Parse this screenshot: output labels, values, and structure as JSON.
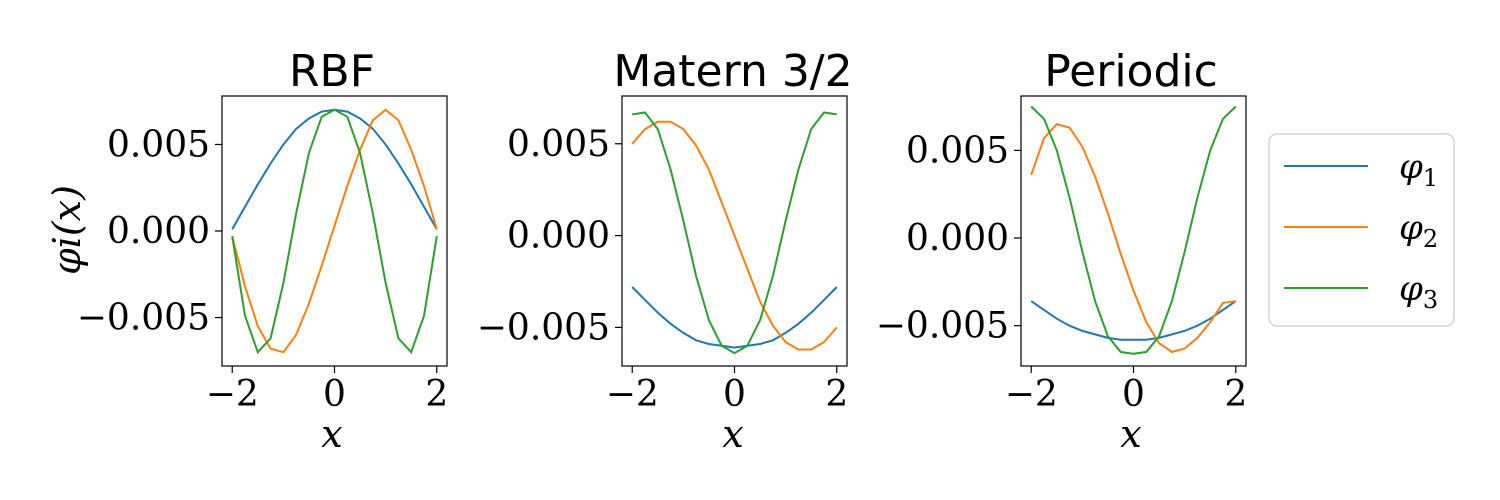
{
  "chart_data": [
    {
      "type": "line",
      "title": "RBF",
      "xlabel": "x",
      "ylabel": "φi(x)",
      "xlim": [
        -2.2,
        2.2
      ],
      "ylim": [
        -0.0078,
        0.0078
      ],
      "xticks": [
        -2,
        0,
        2
      ],
      "xtick_labels": [
        "−2",
        "0",
        "2"
      ],
      "yticks": [
        -0.005,
        0.0,
        0.005
      ],
      "ytick_labels": [
        "−0.005",
        "0.000",
        "0.005"
      ],
      "x": [
        -2.0,
        -1.75,
        -1.5,
        -1.25,
        -1.0,
        -0.75,
        -0.5,
        -0.25,
        0.0,
        0.25,
        0.5,
        0.75,
        1.0,
        1.25,
        1.5,
        1.75,
        2.0
      ],
      "series": [
        {
          "name": "φ1",
          "color": "#1f77b4",
          "values": [
            0.0001,
            0.0014,
            0.0027,
            0.0039,
            0.005,
            0.0059,
            0.0065,
            0.0069,
            0.007,
            0.0069,
            0.0065,
            0.0059,
            0.005,
            0.0039,
            0.0027,
            0.0014,
            0.0001
          ]
        },
        {
          "name": "φ2",
          "color": "#ff7f0e",
          "values": [
            -0.0003,
            -0.0032,
            -0.0055,
            -0.0068,
            -0.007,
            -0.006,
            -0.0042,
            -0.002,
            0.0003,
            0.0026,
            0.0047,
            0.0064,
            0.007,
            0.0064,
            0.0047,
            0.0026,
            0.0001
          ]
        },
        {
          "name": "φ3",
          "color": "#2ca02c",
          "values": [
            -0.0003,
            -0.0049,
            -0.007,
            -0.0062,
            -0.003,
            0.001,
            0.0045,
            0.0066,
            0.007,
            0.0066,
            0.0045,
            0.001,
            -0.003,
            -0.0062,
            -0.007,
            -0.0049,
            -0.0003
          ]
        }
      ],
      "grid": false
    },
    {
      "type": "line",
      "title": "Matern 3/2",
      "xlabel": "x",
      "xlim": [
        -2.2,
        2.2
      ],
      "ylim": [
        -0.0071,
        0.0076
      ],
      "xticks": [
        -2,
        0,
        2
      ],
      "xtick_labels": [
        "−2",
        "0",
        "2"
      ],
      "yticks": [
        -0.005,
        0.0,
        0.005
      ],
      "ytick_labels": [
        "−0.005",
        "0.000",
        "0.005"
      ],
      "x": [
        -2.0,
        -1.75,
        -1.5,
        -1.25,
        -1.0,
        -0.75,
        -0.5,
        -0.25,
        0.0,
        0.25,
        0.5,
        0.75,
        1.0,
        1.25,
        1.5,
        1.75,
        2.0
      ],
      "series": [
        {
          "name": "φ1",
          "color": "#1f77b4",
          "values": [
            -0.0028,
            -0.0035,
            -0.0042,
            -0.0048,
            -0.0053,
            -0.0057,
            -0.0059,
            -0.006,
            -0.0061,
            -0.006,
            -0.0059,
            -0.0057,
            -0.0053,
            -0.0048,
            -0.0042,
            -0.0035,
            -0.0028
          ]
        },
        {
          "name": "φ2",
          "color": "#ff7f0e",
          "values": [
            0.005,
            0.0058,
            0.0062,
            0.0062,
            0.0058,
            0.0049,
            0.0036,
            0.0018,
            0.0,
            -0.0018,
            -0.0036,
            -0.0049,
            -0.0058,
            -0.0062,
            -0.0062,
            -0.0058,
            -0.005
          ]
        },
        {
          "name": "φ3",
          "color": "#2ca02c",
          "values": [
            0.0066,
            0.0067,
            0.0058,
            0.0036,
            0.0008,
            -0.0022,
            -0.0046,
            -0.006,
            -0.0064,
            -0.006,
            -0.0046,
            -0.0022,
            0.0008,
            0.0036,
            0.0058,
            0.0067,
            0.0066
          ]
        }
      ],
      "grid": false
    },
    {
      "type": "line",
      "title": "Periodic",
      "xlabel": "x",
      "xlim": [
        -2.2,
        2.2
      ],
      "ylim": [
        -0.0073,
        0.0081
      ],
      "xticks": [
        -2,
        0,
        2
      ],
      "xtick_labels": [
        "−2",
        "0",
        "2"
      ],
      "yticks": [
        -0.005,
        0.0,
        0.005
      ],
      "ytick_labels": [
        "−0.005",
        "0.000",
        "0.005"
      ],
      "x": [
        -2.0,
        -1.75,
        -1.5,
        -1.25,
        -1.0,
        -0.75,
        -0.5,
        -0.25,
        0.0,
        0.25,
        0.5,
        0.75,
        1.0,
        1.25,
        1.5,
        1.75,
        2.0
      ],
      "series": [
        {
          "name": "φ1",
          "color": "#1f77b4",
          "values": [
            -0.0036,
            -0.0041,
            -0.0046,
            -0.005,
            -0.0053,
            -0.0055,
            -0.0057,
            -0.0058,
            -0.0058,
            -0.0058,
            -0.0057,
            -0.0055,
            -0.0053,
            -0.005,
            -0.0046,
            -0.0041,
            -0.0036
          ]
        },
        {
          "name": "φ2",
          "color": "#ff7f0e",
          "values": [
            0.0036,
            0.0057,
            0.0065,
            0.0063,
            0.0052,
            0.0035,
            0.0014,
            -0.0009,
            -0.003,
            -0.0048,
            -0.006,
            -0.0065,
            -0.0063,
            -0.0057,
            -0.0048,
            -0.0037,
            -0.0036
          ]
        },
        {
          "name": "φ3",
          "color": "#2ca02c",
          "values": [
            0.0075,
            0.0068,
            0.005,
            0.0023,
            -0.0008,
            -0.0036,
            -0.0056,
            -0.0065,
            -0.0066,
            -0.0065,
            -0.0056,
            -0.0036,
            -0.0008,
            0.0023,
            0.005,
            0.0068,
            0.0075
          ]
        }
      ],
      "grid": false
    }
  ],
  "legend": {
    "placement": "right",
    "entries": [
      {
        "label": "φ",
        "sub": "1",
        "color": "#1f77b4"
      },
      {
        "label": "φ",
        "sub": "2",
        "color": "#ff7f0e"
      },
      {
        "label": "φ",
        "sub": "3",
        "color": "#2ca02c"
      }
    ]
  }
}
